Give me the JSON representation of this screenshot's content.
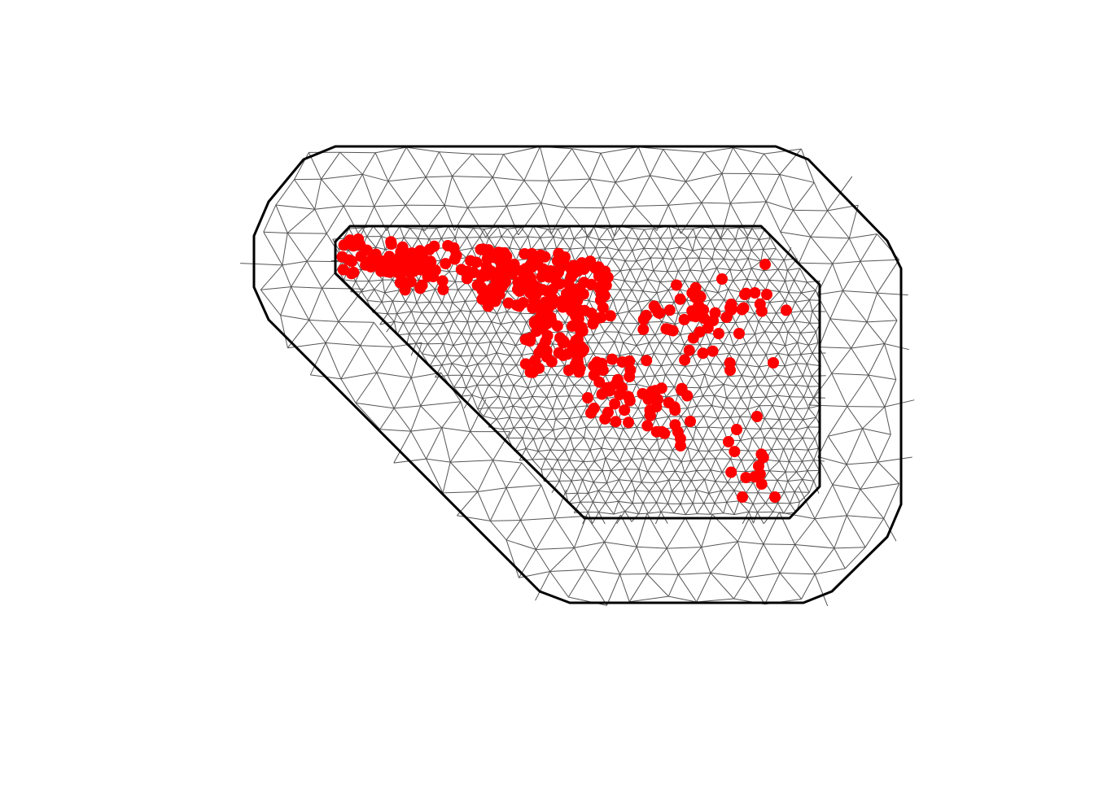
{
  "figure": {
    "description_kind": "triangulated mesh with observation locations",
    "colors": {
      "background": "#ffffff",
      "mesh_edges": "#555555",
      "boundaries": "#000000",
      "points": "#ff0000"
    },
    "mesh": {
      "outer_region_edge_length": "coarse",
      "inner_region_edge_length": "fine"
    },
    "observations": {
      "marker": "filled circle",
      "color": "#ff0000"
    }
  }
}
